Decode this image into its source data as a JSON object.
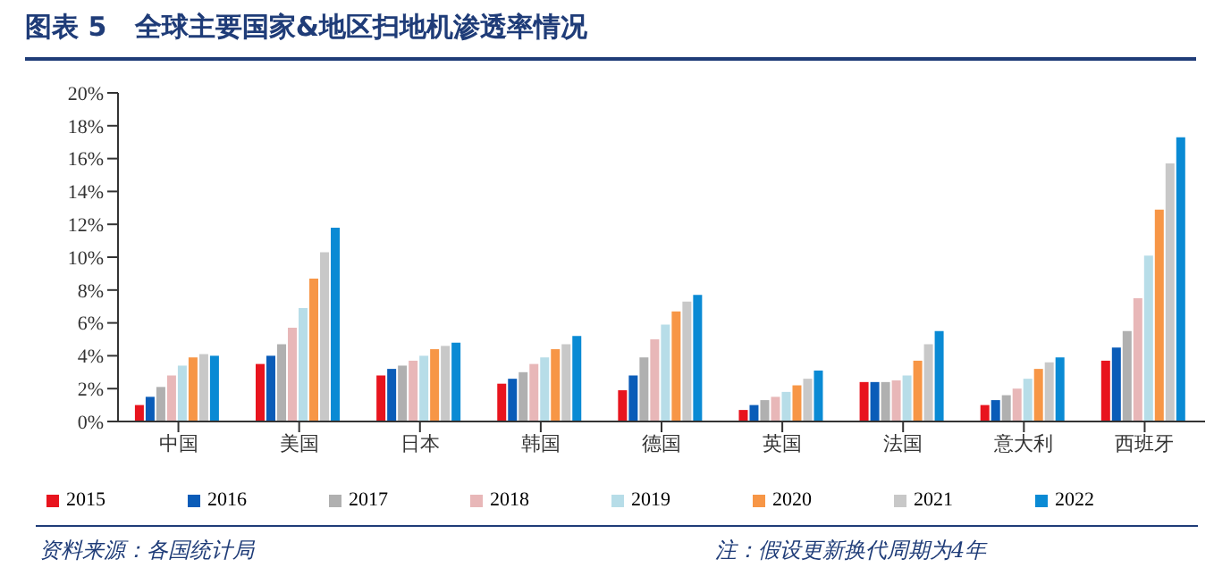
{
  "chart_data": {
    "type": "bar",
    "title": "图表 5   全球主要国家&地区扫地机渗透率情况",
    "categories": [
      "中国",
      "美国",
      "日本",
      "韩国",
      "德国",
      "英国",
      "法国",
      "意大利",
      "西班牙"
    ],
    "series": [
      {
        "name": "2015",
        "color": "#e8141e",
        "values": [
          1.0,
          3.5,
          2.8,
          2.3,
          1.9,
          0.7,
          2.4,
          1.0,
          3.7
        ]
      },
      {
        "name": "2016",
        "color": "#0a5cb8",
        "values": [
          1.5,
          4.0,
          3.2,
          2.6,
          2.8,
          1.0,
          2.4,
          1.3,
          4.5
        ]
      },
      {
        "name": "2017",
        "color": "#b0b0b0",
        "values": [
          2.1,
          4.7,
          3.4,
          3.0,
          3.9,
          1.3,
          2.4,
          1.6,
          5.5
        ]
      },
      {
        "name": "2018",
        "color": "#e8b7b8",
        "values": [
          2.8,
          5.7,
          3.7,
          3.5,
          5.0,
          1.5,
          2.5,
          2.0,
          7.5
        ]
      },
      {
        "name": "2019",
        "color": "#b7dde8",
        "values": [
          3.4,
          6.9,
          4.0,
          3.9,
          5.9,
          1.8,
          2.8,
          2.6,
          10.1
        ]
      },
      {
        "name": "2020",
        "color": "#f79646",
        "values": [
          3.9,
          8.7,
          4.4,
          4.4,
          6.7,
          2.2,
          3.7,
          3.2,
          12.9
        ]
      },
      {
        "name": "2021",
        "color": "#c8c8c8",
        "values": [
          4.1,
          10.3,
          4.6,
          4.7,
          7.3,
          2.6,
          4.7,
          3.6,
          15.7
        ]
      },
      {
        "name": "2022",
        "color": "#0a8ad4",
        "values": [
          4.0,
          11.8,
          4.8,
          5.2,
          7.7,
          3.1,
          5.5,
          3.9,
          17.3
        ]
      }
    ],
    "ylim": [
      0,
      20
    ],
    "yticks": [
      {
        "value": 0,
        "label": "0%"
      },
      {
        "value": 2,
        "label": "2%"
      },
      {
        "value": 4,
        "label": "4%"
      },
      {
        "value": 6,
        "label": "6%"
      },
      {
        "value": 8,
        "label": "8%"
      },
      {
        "value": 10,
        "label": "10%"
      },
      {
        "value": 12,
        "label": "12%"
      },
      {
        "value": 14,
        "label": "14%"
      },
      {
        "value": 16,
        "label": "16%"
      },
      {
        "value": 18,
        "label": "18%"
      },
      {
        "value": 20,
        "label": "20%"
      }
    ],
    "grid": false,
    "legend": "bottom",
    "annotations": [
      "资料来源：各国统计局",
      "注：假设更新换代周期为4年"
    ]
  }
}
